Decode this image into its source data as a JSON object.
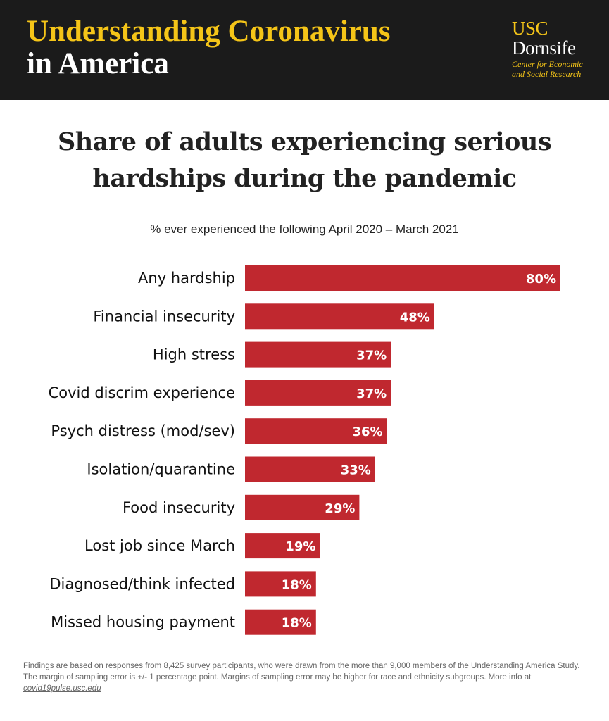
{
  "header": {
    "title_line1": "Understanding Coronavirus",
    "title_line2": "in America",
    "logo_usc": "USC",
    "logo_dornsife": "Dornsife",
    "logo_sub_line1": "Center for Economic",
    "logo_sub_line2": "and Social Research"
  },
  "colors": {
    "bar": "#c0282f",
    "header_bg": "#1b1b1b",
    "accent": "#f5c518"
  },
  "chart_data": {
    "type": "bar",
    "orientation": "horizontal",
    "title": "Share of adults experiencing serious hardships during the pandemic",
    "title_line1": "Share of adults experiencing serious",
    "title_line2": "hardships during the pandemic",
    "subtitle": "% ever experienced the following April 2020 – March 2021",
    "categories": [
      "Any hardship",
      "Financial insecurity",
      "High stress",
      "Covid discrim experience",
      "Psych distress (mod/sev)",
      "Isolation/quarantine",
      "Food insecurity",
      "Lost job since March",
      "Diagnosed/think infected",
      "Missed housing payment"
    ],
    "values": [
      80,
      48,
      37,
      37,
      36,
      33,
      29,
      19,
      18,
      18
    ],
    "value_labels": [
      "80%",
      "48%",
      "37%",
      "37%",
      "36%",
      "33%",
      "29%",
      "19%",
      "18%",
      "18%"
    ],
    "xlim": [
      0,
      80
    ],
    "grid": false,
    "legend": "none"
  },
  "footer": {
    "text": "Findings are based on responses from 8,425 survey participants, who were drawn from the more than 9,000 members of the Understanding America Study. The margin of sampling error is +/- 1 percentage point. Margins of sampling error may be higher for race and ethnicity subgroups. More info at ",
    "link": "covid19pulse.usc.edu"
  }
}
